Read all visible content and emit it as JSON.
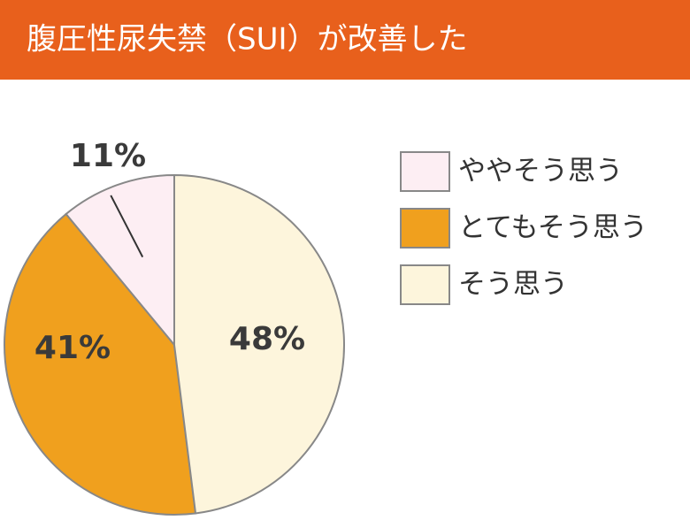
{
  "chart_data": {
    "type": "pie",
    "title": "腹圧性尿失禁（SUI）が改善した",
    "categories": [
      "ややそう思う",
      "とてもそう思う",
      "そう思う"
    ],
    "values": [
      11,
      41,
      48
    ],
    "value_labels": [
      "11%",
      "41%",
      "48%"
    ],
    "colors": [
      "#fdeef3",
      "#f0a01e",
      "#fdf5dc"
    ]
  }
}
